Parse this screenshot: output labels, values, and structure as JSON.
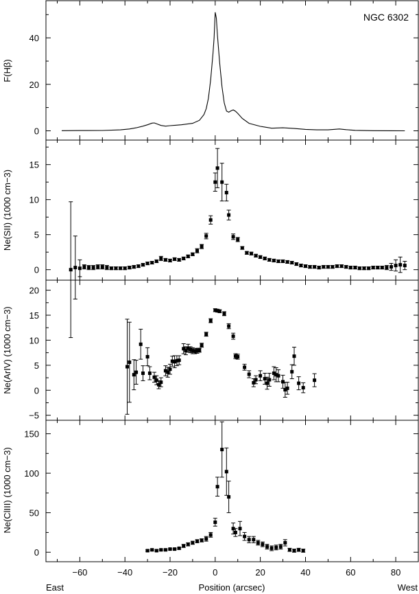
{
  "figure_label": "NGC 6302",
  "x_axis": {
    "label": "Position (arcsec)",
    "left_label": "East",
    "right_label": "West",
    "range": [
      -75,
      90
    ],
    "ticks": [
      -60,
      -40,
      -20,
      0,
      20,
      40,
      60,
      80
    ],
    "tick_labels": [
      "−60",
      "−40",
      "−20",
      "0",
      "20",
      "40",
      "60",
      "80"
    ]
  },
  "y_axis_labels": {
    "hbeta": "F(Hβ)",
    "sii": "Ne(SII) (1000 cm−3)",
    "ariv": "Ne(ArIV) (1000 cm−3)",
    "cliii": "Ne(ClIII) (1000 cm−3)"
  },
  "chart_data": [
    {
      "type": "line",
      "panel": "hbeta",
      "ylabel": "F(Hβ)",
      "ylim": [
        -4,
        56
      ],
      "yticks": [
        0,
        20,
        40
      ],
      "x": [
        -68,
        -60,
        -50,
        -42,
        -38,
        -35,
        -32,
        -30,
        -28,
        -27,
        -26,
        -24,
        -22,
        -20,
        -15,
        -10,
        -7,
        -5,
        -4,
        -3,
        -2,
        -1,
        -0.5,
        0,
        0.5,
        1,
        2,
        3,
        4,
        5,
        6,
        7,
        8,
        9,
        10,
        12,
        15,
        20,
        25,
        30,
        35,
        40,
        45,
        50,
        55,
        58,
        62,
        70,
        78,
        84
      ],
      "y": [
        0.05,
        0.1,
        0.15,
        0.4,
        0.8,
        1.3,
        2.0,
        2.6,
        3.3,
        3.4,
        3.0,
        2.3,
        2.0,
        2.2,
        2.6,
        3.2,
        4.5,
        7.0,
        9.5,
        14.0,
        22.0,
        33.0,
        40.0,
        51.0,
        48.5,
        41.0,
        29.0,
        19.0,
        12.0,
        8.5,
        8.0,
        8.6,
        9.0,
        8.4,
        7.5,
        5.3,
        3.2,
        1.9,
        1.1,
        1.3,
        1.0,
        0.6,
        0.4,
        0.4,
        0.8,
        0.5,
        0.2,
        0.05,
        0.02,
        0.0
      ]
    },
    {
      "type": "scatter",
      "panel": "sii",
      "ylabel": "Ne(SII) (1000 cm−3)",
      "ylim": [
        -1.5,
        18.5
      ],
      "yticks": [
        0,
        5,
        10,
        15
      ],
      "x": [
        -64,
        -62,
        -60,
        -58,
        -56,
        -54,
        -52,
        -50,
        -48,
        -46,
        -44,
        -42,
        -40,
        -38,
        -36,
        -34,
        -32,
        -30,
        -28,
        -26,
        -24,
        -22,
        -20,
        -18,
        -16,
        -14,
        -12,
        -10,
        -8,
        -6,
        -4,
        -2,
        0,
        1,
        3,
        5,
        6,
        8,
        10,
        12,
        14,
        16,
        18,
        20,
        22,
        24,
        26,
        28,
        30,
        32,
        34,
        36,
        38,
        40,
        42,
        44,
        46,
        48,
        50,
        52,
        54,
        56,
        58,
        60,
        62,
        64,
        66,
        68,
        70,
        72,
        74,
        76,
        78,
        80,
        82,
        84
      ],
      "y": [
        0.0,
        0.3,
        0.2,
        0.4,
        0.3,
        0.3,
        0.4,
        0.4,
        0.3,
        0.2,
        0.2,
        0.2,
        0.2,
        0.3,
        0.4,
        0.5,
        0.7,
        0.9,
        1.0,
        1.2,
        1.6,
        1.4,
        1.3,
        1.5,
        1.4,
        1.6,
        1.9,
        2.2,
        2.7,
        3.3,
        4.8,
        7.1,
        12.5,
        14.5,
        12.5,
        11.0,
        7.8,
        4.7,
        4.3,
        3.1,
        2.4,
        2.3,
        2.0,
        1.8,
        1.6,
        1.4,
        1.3,
        1.2,
        1.2,
        1.1,
        1.0,
        0.8,
        0.6,
        0.5,
        0.4,
        0.4,
        0.3,
        0.4,
        0.4,
        0.4,
        0.5,
        0.5,
        0.4,
        0.3,
        0.3,
        0.2,
        0.2,
        0.2,
        0.3,
        0.3,
        0.3,
        0.3,
        0.4,
        0.6,
        0.7,
        0.6
      ],
      "err": [
        9.7,
        4.5,
        1.2,
        0.3,
        0.3,
        0.3,
        0.3,
        0.3,
        0.3,
        0.2,
        0.2,
        0.2,
        0.2,
        0.2,
        0.2,
        0.2,
        0.2,
        0.2,
        0.2,
        0.2,
        0.3,
        0.2,
        0.2,
        0.2,
        0.2,
        0.2,
        0.2,
        0.2,
        0.3,
        0.3,
        0.4,
        0.6,
        1.3,
        2.8,
        2.7,
        1.2,
        0.7,
        0.4,
        0.3,
        0.2,
        0.2,
        0.2,
        0.2,
        0.2,
        0.2,
        0.2,
        0.2,
        0.2,
        0.2,
        0.2,
        0.2,
        0.2,
        0.2,
        0.2,
        0.2,
        0.2,
        0.2,
        0.2,
        0.2,
        0.2,
        0.2,
        0.2,
        0.2,
        0.2,
        0.2,
        0.2,
        0.2,
        0.2,
        0.2,
        0.2,
        0.2,
        0.3,
        0.5,
        0.8,
        1.1,
        0.6
      ]
    },
    {
      "type": "scatter",
      "panel": "ariv",
      "ylabel": "Ne(ArIV) (1000 cm−3)",
      "ylim": [
        -6,
        22
      ],
      "yticks": [
        -5,
        0,
        5,
        10,
        15,
        20
      ],
      "x": [
        -39,
        -38,
        -36,
        -35,
        -33,
        -32,
        -30,
        -29,
        -27,
        -26,
        -25,
        -24,
        -22,
        -21,
        -20,
        -19,
        -18,
        -17,
        -16,
        -14,
        -13,
        -12,
        -11,
        -10,
        -9,
        -8,
        -7,
        -6,
        -4,
        -2,
        0,
        1,
        2,
        4,
        6,
        8,
        9,
        10,
        13,
        15,
        17,
        18,
        20,
        22,
        23,
        24,
        26,
        27,
        28,
        30,
        31,
        32,
        34,
        35,
        37,
        39,
        44
      ],
      "y": [
        4.7,
        5.6,
        3.1,
        3.6,
        9.2,
        3.4,
        6.7,
        3.4,
        2.6,
        2.0,
        1.1,
        1.6,
        3.9,
        3.6,
        4.2,
        5.8,
        5.7,
        5.9,
        6.0,
        8.3,
        7.9,
        8.4,
        8.1,
        7.9,
        7.8,
        7.9,
        8.0,
        9.0,
        11.2,
        13.9,
        16.0,
        15.9,
        15.8,
        15.3,
        12.8,
        10.8,
        6.8,
        6.7,
        4.6,
        3.2,
        1.5,
        2.1,
        2.9,
        2.3,
        1.4,
        2.1,
        3.4,
        3.1,
        2.9,
        1.7,
        0.1,
        0.4,
        3.7,
        6.8,
        1.4,
        0.5,
        2.0
      ],
      "err": [
        9.5,
        8.0,
        3.0,
        2.4,
        3.0,
        1.5,
        1.8,
        1.3,
        1.0,
        0.9,
        0.8,
        0.9,
        1.0,
        1.0,
        1.0,
        1.0,
        1.2,
        1.0,
        0.9,
        1.0,
        0.8,
        0.8,
        0.6,
        0.6,
        0.5,
        0.5,
        0.4,
        0.4,
        0.4,
        0.4,
        0.3,
        0.3,
        0.3,
        0.4,
        0.5,
        0.6,
        0.5,
        0.5,
        0.6,
        0.7,
        0.8,
        0.8,
        1.0,
        1.1,
        1.2,
        1.3,
        1.3,
        1.4,
        1.2,
        1.3,
        1.5,
        1.2,
        1.4,
        1.8,
        1.3,
        1.0,
        1.3
      ]
    },
    {
      "type": "scatter",
      "panel": "cliii",
      "ylabel": "Ne(ClIII) (1000 cm−3)",
      "ylim": [
        -12,
        167
      ],
      "yticks": [
        0,
        50,
        100,
        150
      ],
      "x": [
        -30,
        -28,
        -26,
        -24,
        -22,
        -20,
        -18,
        -16,
        -14,
        -12,
        -10,
        -8,
        -6,
        -4,
        -2,
        0,
        1,
        3,
        5,
        6,
        8,
        9,
        11,
        13,
        15,
        17,
        19,
        21,
        23,
        25,
        27,
        29,
        31,
        33,
        35,
        37,
        39
      ],
      "y": [
        2,
        3,
        2,
        3,
        3,
        4,
        4,
        5,
        8,
        10,
        12,
        14,
        15,
        17,
        22,
        38,
        83,
        130,
        102,
        70,
        30,
        25,
        30,
        20,
        16,
        16,
        12,
        10,
        7,
        5,
        6,
        7,
        12,
        3,
        2,
        3,
        2
      ],
      "err": [
        1,
        1,
        1,
        1,
        1,
        1,
        1,
        1,
        2,
        2,
        2,
        2,
        2,
        3,
        3,
        5,
        12,
        35,
        30,
        20,
        7,
        5,
        9,
        5,
        4,
        4,
        3,
        3,
        3,
        3,
        3,
        3,
        4,
        2,
        2,
        2,
        2
      ]
    }
  ]
}
